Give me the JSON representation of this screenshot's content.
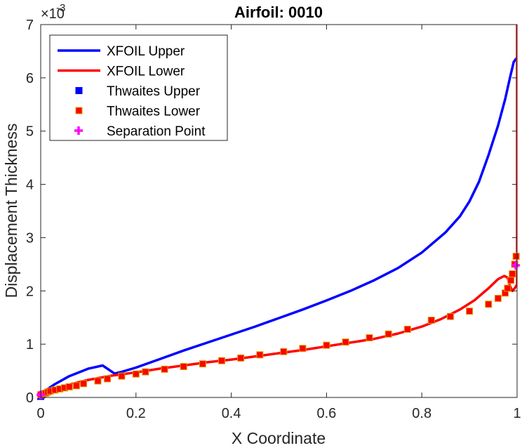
{
  "chart_data": {
    "type": "line",
    "title": "Airfoil: 0010",
    "xlabel": "X Coordinate",
    "ylabel": "Displacement Thickness",
    "y_exponent_base": "×10",
    "y_exponent_power": "-3",
    "xlim": [
      0,
      1
    ],
    "ylim": [
      0,
      7
    ],
    "xticks": [
      0,
      0.2,
      0.4,
      0.6,
      0.8,
      1
    ],
    "xtick_labels": [
      "0",
      "0.2",
      "0.4",
      "0.6",
      "0.8",
      "1"
    ],
    "yticks": [
      0,
      1,
      2,
      3,
      4,
      5,
      6,
      7
    ],
    "ytick_labels": [
      "0",
      "1",
      "2",
      "3",
      "4",
      "5",
      "6",
      "7"
    ],
    "grid": false,
    "legend_position": "top-left",
    "series": [
      {
        "name": "XFOIL Upper",
        "kind": "line",
        "color": "#0000ff",
        "x": [
          0,
          0.01,
          0.03,
          0.06,
          0.1,
          0.13,
          0.155,
          0.17,
          0.2,
          0.25,
          0.3,
          0.35,
          0.4,
          0.45,
          0.5,
          0.55,
          0.6,
          0.65,
          0.7,
          0.75,
          0.8,
          0.85,
          0.88,
          0.9,
          0.92,
          0.94,
          0.96,
          0.975,
          0.985,
          0.993,
          1.0
        ],
        "y": [
          0.05,
          0.13,
          0.25,
          0.4,
          0.54,
          0.6,
          0.45,
          0.48,
          0.56,
          0.72,
          0.88,
          1.03,
          1.18,
          1.33,
          1.49,
          1.65,
          1.82,
          2.0,
          2.2,
          2.43,
          2.72,
          3.1,
          3.4,
          3.68,
          4.05,
          4.55,
          5.1,
          5.6,
          6.0,
          6.3,
          6.38
        ]
      },
      {
        "name": "XFOIL Lower",
        "kind": "line",
        "color": "#ff0000",
        "x": [
          0,
          0.005,
          0.02,
          0.05,
          0.1,
          0.15,
          0.2,
          0.25,
          0.3,
          0.35,
          0.4,
          0.45,
          0.5,
          0.55,
          0.6,
          0.65,
          0.7,
          0.75,
          0.8,
          0.84,
          0.88,
          0.91,
          0.94,
          0.96,
          0.973,
          0.98,
          0.985,
          0.99,
          0.995,
          1.0,
          1.0
        ],
        "y": [
          0.0,
          0.05,
          0.12,
          0.22,
          0.33,
          0.41,
          0.47,
          0.54,
          0.6,
          0.66,
          0.71,
          0.77,
          0.83,
          0.89,
          0.96,
          1.03,
          1.1,
          1.2,
          1.33,
          1.47,
          1.65,
          1.82,
          2.05,
          2.22,
          2.28,
          2.25,
          2.1,
          2.0,
          2.05,
          2.12,
          7.0
        ]
      },
      {
        "name": "Thwaites Upper",
        "kind": "marker",
        "marker": "square",
        "color": "#0000ff",
        "x": [
          0.0,
          0.002
        ],
        "y": [
          0.02,
          0.05
        ]
      },
      {
        "name": "Thwaites Lower",
        "kind": "marker",
        "marker": "square",
        "color": "#ff0000",
        "edgecolor": "#d9a400",
        "x": [
          0.0,
          0.005,
          0.01,
          0.015,
          0.02,
          0.03,
          0.04,
          0.05,
          0.06,
          0.075,
          0.09,
          0.12,
          0.14,
          0.17,
          0.2,
          0.22,
          0.26,
          0.3,
          0.34,
          0.38,
          0.42,
          0.46,
          0.51,
          0.55,
          0.6,
          0.64,
          0.69,
          0.73,
          0.77,
          0.82,
          0.86,
          0.9,
          0.94,
          0.96,
          0.975,
          0.98,
          0.987,
          0.99,
          0.995,
          0.998
        ],
        "y": [
          0.05,
          0.06,
          0.08,
          0.1,
          0.12,
          0.14,
          0.16,
          0.18,
          0.2,
          0.22,
          0.26,
          0.31,
          0.35,
          0.4,
          0.44,
          0.48,
          0.53,
          0.58,
          0.63,
          0.69,
          0.74,
          0.8,
          0.86,
          0.92,
          0.98,
          1.04,
          1.12,
          1.19,
          1.28,
          1.45,
          1.52,
          1.62,
          1.75,
          1.86,
          1.96,
          2.05,
          2.2,
          2.32,
          2.5,
          2.65
        ]
      },
      {
        "name": "Separation Point",
        "kind": "marker",
        "marker": "plus",
        "color": "#ff00ff",
        "x": [
          0.0,
          0.997
        ],
        "y": [
          0.05,
          2.48
        ]
      }
    ]
  }
}
